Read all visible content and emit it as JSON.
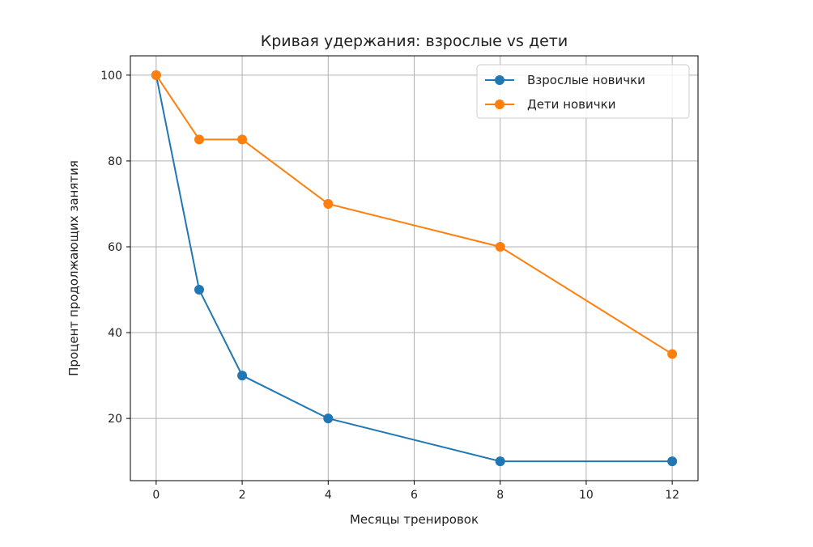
{
  "chart_data": {
    "type": "line",
    "title": "Кривая удержания: взрослые vs дети",
    "xlabel": "Месяцы тренировок",
    "ylabel": "Процент продолжающих занятия",
    "x": [
      0,
      1,
      2,
      4,
      8,
      12
    ],
    "series": [
      {
        "name": "Взрослые новички",
        "color": "#1f77b4",
        "values": [
          100,
          50,
          30,
          20,
          10,
          10
        ]
      },
      {
        "name": "Дети новички",
        "color": "#ff7f0e",
        "values": [
          100,
          85,
          85,
          70,
          60,
          35
        ]
      }
    ],
    "xlim": [
      -0.6,
      12.6
    ],
    "ylim": [
      5.5,
      104.5
    ],
    "xticks": [
      0,
      2,
      4,
      6,
      8,
      10,
      12
    ],
    "yticks": [
      20,
      40,
      60,
      80,
      100
    ],
    "grid": true,
    "legend_position": "top-right"
  }
}
